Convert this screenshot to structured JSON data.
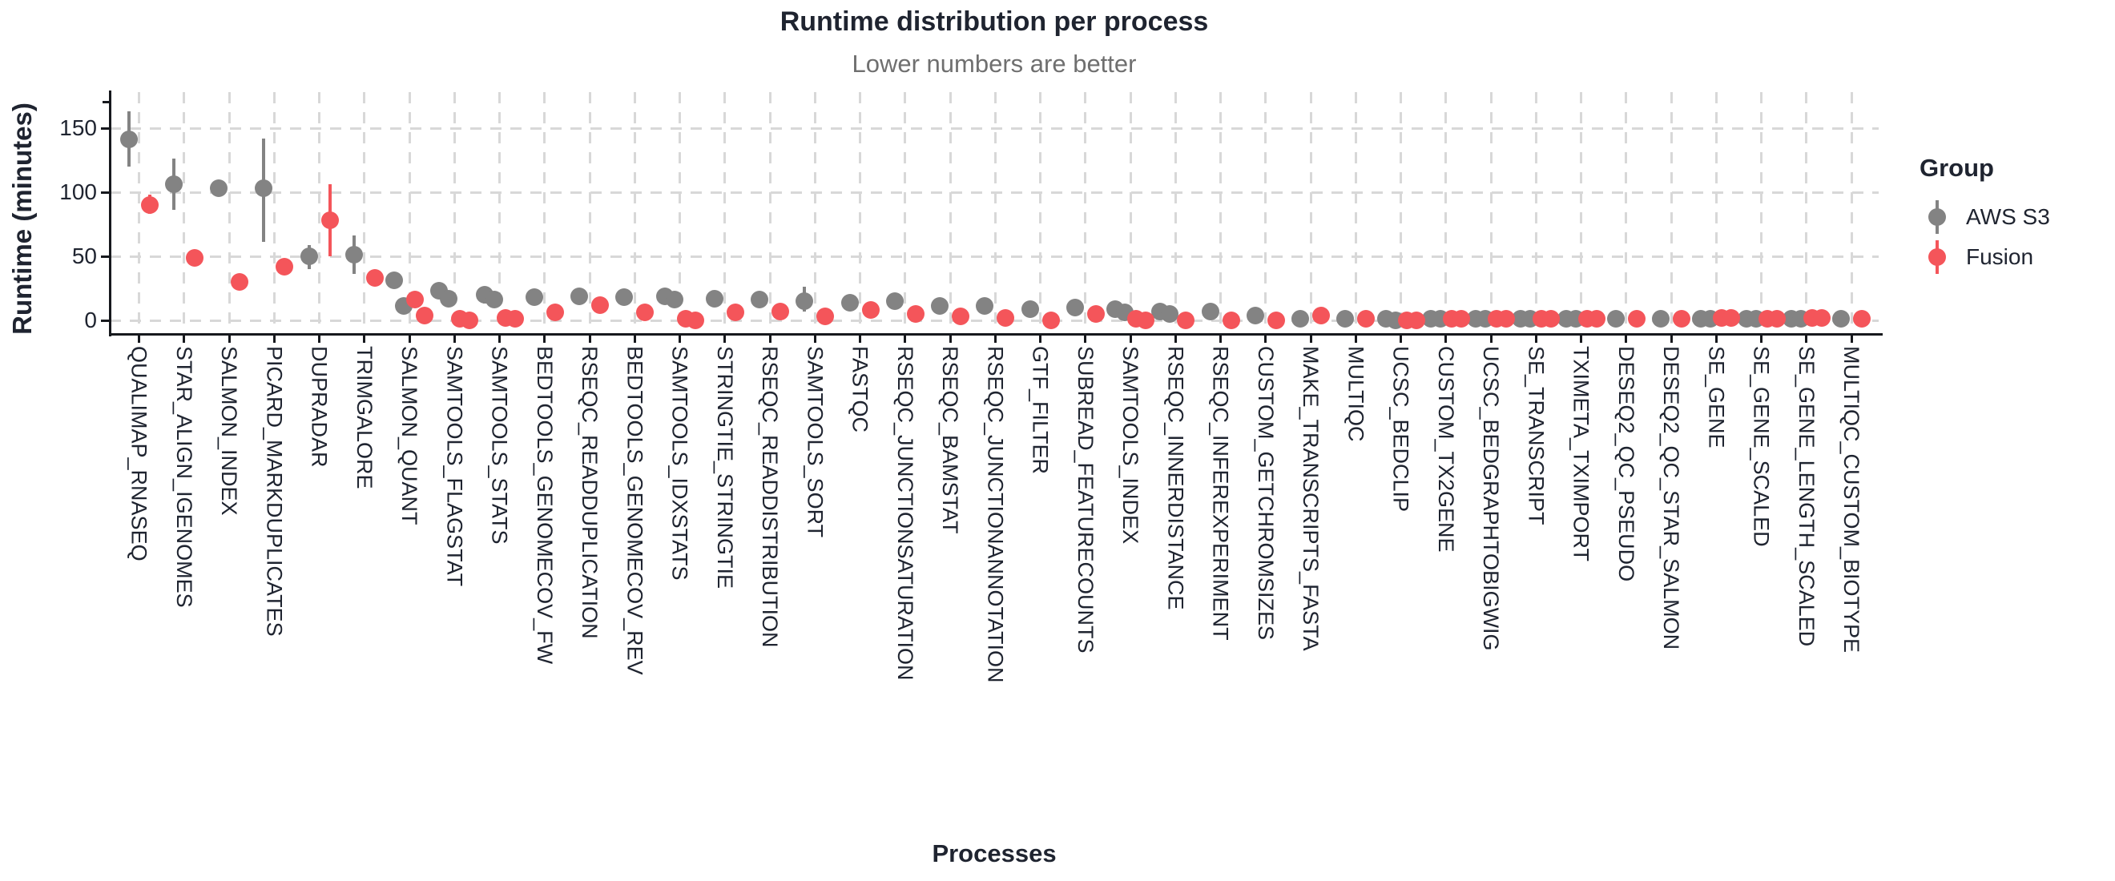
{
  "header": {
    "title": "Runtime distribution per process",
    "subtitle": "Lower numbers are better"
  },
  "axes": {
    "y_label": "Runtime (minutes)",
    "x_label": "Processes",
    "y_ticks": [
      0,
      50,
      100,
      150
    ]
  },
  "legend": {
    "title": "Group",
    "items": [
      {
        "label": "AWS S3",
        "color": "#838383"
      },
      {
        "label": "Fusion",
        "color": "#F4555A"
      }
    ]
  },
  "colors": {
    "aws_gray": "#838383",
    "fusion_red": "#F4555A",
    "text_dark": "#1F2430",
    "subtitle_gray": "#6F6F6F",
    "grid_gray": "#D8D8D8",
    "axis_black": "#16181D"
  },
  "chart_data": {
    "type": "scatter",
    "subtype": "dodged pointrange (runtime dots with min-max range bars)",
    "title": "Runtime distribution per process",
    "subtitle": "Lower numbers are better",
    "xlabel": "Processes",
    "ylabel": "Runtime (minutes)",
    "ylim": [
      -6,
      178
    ],
    "grid": "dashed major gridlines, both axes",
    "legend_position": "right",
    "legend_title": "Group",
    "categories": [
      "QUALIMAP_RNASEQ",
      "STAR_ALIGN_IGENOMES",
      "SALMON_INDEX",
      "PICARD_MARKDUPLICATES",
      "DUPRADAR",
      "TRIMGALORE",
      "SALMON_QUANT",
      "SAMTOOLS_FLAGSTAT",
      "SAMTOOLS_STATS",
      "BEDTOOLS_GENOMECOV_FW",
      "RSEQC_READDUPLICATION",
      "BEDTOOLS_GENOMECOV_REV",
      "SAMTOOLS_IDXSTATS",
      "STRINGTIE_STRINGTIE",
      "RSEQC_READDISTRIBUTION",
      "SAMTOOLS_SORT",
      "FASTQC",
      "RSEQC_JUNCTIONSATURATION",
      "RSEQC_BAMSTAT",
      "RSEQC_JUNCTIONANNOTATION",
      "GTF_FILTER",
      "SUBREAD_FEATURECOUNTS",
      "SAMTOOLS_INDEX",
      "RSEQC_INNERDISTANCE",
      "RSEQC_INFEREXPERIMENT",
      "CUSTOM_GETCHROMSIZES",
      "MAKE_TRANSCRIPTS_FASTA",
      "MULTIQC",
      "UCSC_BEDCLIP",
      "CUSTOM_TX2GENE",
      "UCSC_BEDGRAPHTOBIGWIG",
      "SE_TRANSCRIPT",
      "TXIMETA_TXIMPORT",
      "DESEQ2_QC_PSEUDO",
      "DESEQ2_QC_STAR_SALMON",
      "SE_GENE",
      "SE_GENE_SCALED",
      "SE_GENE_LENGTH_SCALED",
      "MULTIQC_CUSTOM_BIOTYPE"
    ],
    "series": [
      {
        "name": "AWS S3",
        "color": "#838383",
        "points": [
          {
            "dots": [
              141
            ],
            "range": [
              120,
              163
            ]
          },
          {
            "dots": [
              106
            ],
            "range": [
              86,
              126
            ]
          },
          {
            "dots": [
              103
            ],
            "range": null
          },
          {
            "dots": [
              103
            ],
            "range": [
              61,
              142
            ]
          },
          {
            "dots": [
              50
            ],
            "range": [
              40,
              59
            ]
          },
          {
            "dots": [
              51
            ],
            "range": [
              36,
              66
            ]
          },
          {
            "dots": [
              31,
              11
            ],
            "range": null
          },
          {
            "dots": [
              23,
              17
            ],
            "range": null
          },
          {
            "dots": [
              20,
              16
            ],
            "range": [
              13,
              26
            ]
          },
          {
            "dots": [
              18
            ],
            "range": null
          },
          {
            "dots": [
              19
            ],
            "range": null
          },
          {
            "dots": [
              18
            ],
            "range": null
          },
          {
            "dots": [
              19,
              16
            ],
            "range": null
          },
          {
            "dots": [
              17
            ],
            "range": null
          },
          {
            "dots": [
              16
            ],
            "range": null
          },
          {
            "dots": [
              15
            ],
            "range": [
              7,
              26
            ]
          },
          {
            "dots": [
              14
            ],
            "range": null
          },
          {
            "dots": [
              15
            ],
            "range": null
          },
          {
            "dots": [
              11
            ],
            "range": null
          },
          {
            "dots": [
              11
            ],
            "range": null
          },
          {
            "dots": [
              9
            ],
            "range": null
          },
          {
            "dots": [
              10
            ],
            "range": null
          },
          {
            "dots": [
              9,
              6
            ],
            "range": null
          },
          {
            "dots": [
              7,
              5
            ],
            "range": null
          },
          {
            "dots": [
              7
            ],
            "range": null
          },
          {
            "dots": [
              4
            ],
            "range": null
          },
          {
            "dots": [
              1
            ],
            "range": null
          },
          {
            "dots": [
              1
            ],
            "range": null
          },
          {
            "dots": [
              1,
              0
            ],
            "range": null
          },
          {
            "dots": [
              1,
              1
            ],
            "range": null
          },
          {
            "dots": [
              1,
              1
            ],
            "range": null
          },
          {
            "dots": [
              1,
              1
            ],
            "range": null
          },
          {
            "dots": [
              1,
              1
            ],
            "range": null
          },
          {
            "dots": [
              1
            ],
            "range": null
          },
          {
            "dots": [
              1
            ],
            "range": null
          },
          {
            "dots": [
              1,
              1
            ],
            "range": null
          },
          {
            "dots": [
              1,
              1
            ],
            "range": null
          },
          {
            "dots": [
              1,
              1
            ],
            "range": null
          },
          {
            "dots": [
              1
            ],
            "range": null
          }
        ]
      },
      {
        "name": "Fusion",
        "color": "#F4555A",
        "points": [
          {
            "dots": [
              90
            ],
            "range": [
              83,
              98
            ]
          },
          {
            "dots": [
              49
            ],
            "range": null
          },
          {
            "dots": [
              30
            ],
            "range": null
          },
          {
            "dots": [
              42
            ],
            "range": null
          },
          {
            "dots": [
              78
            ],
            "range": [
              50,
              106
            ]
          },
          {
            "dots": [
              33
            ],
            "range": null
          },
          {
            "dots": [
              16,
              4
            ],
            "range": null
          },
          {
            "dots": [
              1,
              0
            ],
            "range": null
          },
          {
            "dots": [
              2,
              1
            ],
            "range": null
          },
          {
            "dots": [
              6
            ],
            "range": null
          },
          {
            "dots": [
              12
            ],
            "range": null
          },
          {
            "dots": [
              6
            ],
            "range": null
          },
          {
            "dots": [
              1,
              0
            ],
            "range": null
          },
          {
            "dots": [
              6
            ],
            "range": null
          },
          {
            "dots": [
              7
            ],
            "range": null
          },
          {
            "dots": [
              3
            ],
            "range": null
          },
          {
            "dots": [
              8
            ],
            "range": null
          },
          {
            "dots": [
              5
            ],
            "range": null
          },
          {
            "dots": [
              3
            ],
            "range": null
          },
          {
            "dots": [
              2
            ],
            "range": null
          },
          {
            "dots": [
              0
            ],
            "range": null
          },
          {
            "dots": [
              5
            ],
            "range": null
          },
          {
            "dots": [
              1,
              0
            ],
            "range": null
          },
          {
            "dots": [
              0
            ],
            "range": null
          },
          {
            "dots": [
              0
            ],
            "range": null
          },
          {
            "dots": [
              0
            ],
            "range": null
          },
          {
            "dots": [
              4
            ],
            "range": null
          },
          {
            "dots": [
              1
            ],
            "range": null
          },
          {
            "dots": [
              0,
              0
            ],
            "range": null
          },
          {
            "dots": [
              1,
              1
            ],
            "range": null
          },
          {
            "dots": [
              1,
              1
            ],
            "range": null
          },
          {
            "dots": [
              1,
              1
            ],
            "range": null
          },
          {
            "dots": [
              1,
              1
            ],
            "range": null
          },
          {
            "dots": [
              1
            ],
            "range": null
          },
          {
            "dots": [
              1
            ],
            "range": null
          },
          {
            "dots": [
              2,
              2
            ],
            "range": null
          },
          {
            "dots": [
              1,
              1
            ],
            "range": null
          },
          {
            "dots": [
              2,
              2
            ],
            "range": null
          },
          {
            "dots": [
              1
            ],
            "range": null
          }
        ]
      }
    ]
  }
}
